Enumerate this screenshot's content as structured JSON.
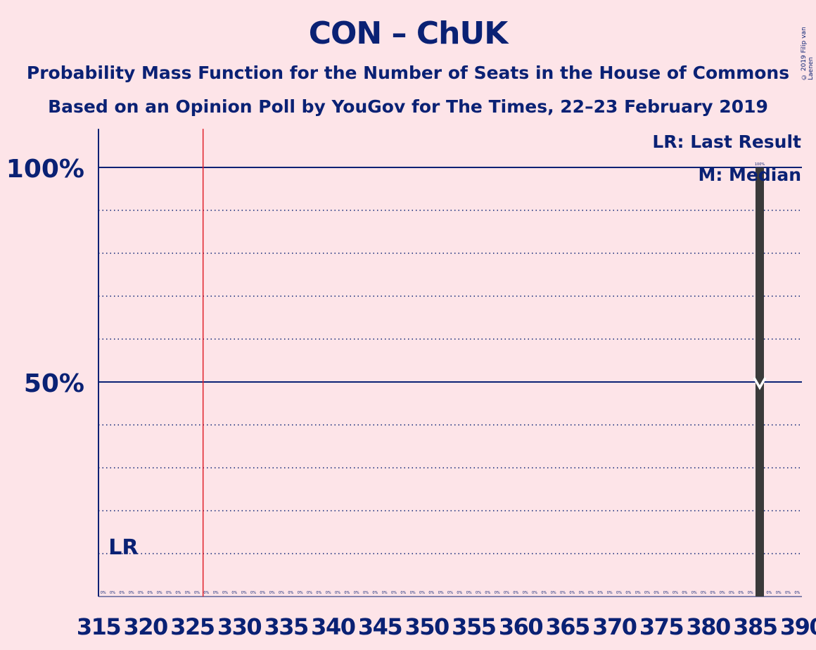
{
  "chart_data": {
    "type": "bar",
    "title": "CON – ChUK",
    "subtitle": "Probability Mass Function for the Number of Seats in the House of Commons",
    "source": "Based on an Opinion Poll by YouGov for The Times, 22–23 February 2019",
    "copyright": "© 2019 Filip van Laenen",
    "x_min": 315,
    "x_max": 390,
    "x_tick_step": 5,
    "ylim": [
      0,
      1.09
    ],
    "y_major_ticks": [
      {
        "value": 0.5,
        "label": "50%"
      },
      {
        "value": 1.0,
        "label": "100%"
      }
    ],
    "y_minor_ticks": [
      0.1,
      0.2,
      0.3,
      0.4,
      0.6,
      0.7,
      0.8,
      0.9
    ],
    "seats_from": 315,
    "seats_to": 389,
    "bar_seat": 385,
    "bar_value": 1.0,
    "bar_label": "100%",
    "zero_label": "0%",
    "majority_line_seat": 326,
    "last_result_seat": 317,
    "last_result_label": "LR",
    "median_seat": 385,
    "median_value": 0.5,
    "legend": [
      "LR: Last Result",
      "M: Median"
    ],
    "legend_position": "top-right",
    "bar_color": "#3a3a3a",
    "axis_color": "#0a2174",
    "majority_color": "#e0202a",
    "background": "#fde4e8"
  }
}
